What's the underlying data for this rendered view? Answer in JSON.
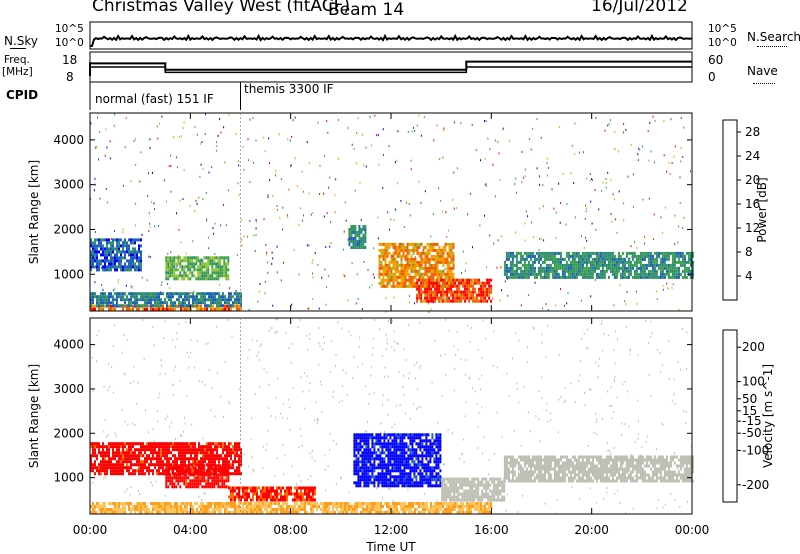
{
  "header": {
    "station": "Christmas Valley West (fitACF)",
    "beam": "Beam 14",
    "date": "16/Jul/2012"
  },
  "summary_panel": {
    "left_label_top": "N.Sky",
    "left_ticks_top": [
      "10^5",
      "10^0"
    ],
    "right_ticks_top": [
      "10^5",
      "10^0"
    ],
    "right_label_top": "N.Search",
    "left_label_freq": "Freq.",
    "left_label_freq_unit": "[MHz]",
    "left_ticks_freq": [
      "18",
      "8"
    ],
    "right_ticks_freq": [
      "60",
      "0"
    ],
    "right_label_freq": "Nave",
    "cpid_label": "CPID",
    "cpid_segments": [
      "normal (fast) 151 IF",
      "themis 3300 IF"
    ]
  },
  "colors": {
    "power": [
      "#0000ff",
      "#1f5fbf",
      "#2c8c74",
      "#3aa04a",
      "#8fc22d",
      "#f0a000",
      "#f06000",
      "#ff0000"
    ],
    "velocity": [
      "#ff0000",
      "#ff6a00",
      "#ff9f20",
      "#ffc45c",
      "#bdbdb3",
      "#6fcf3a",
      "#3f9f5f",
      "#1e60c0",
      "#0000ff"
    ],
    "ground_scatter": "#bdbdb3"
  },
  "chart_data": [
    {
      "type": "heatmap",
      "title": "",
      "xlabel": "",
      "ylabel": "Slant Range [km]",
      "xlim": [
        "00:00",
        "24:00"
      ],
      "ylim": [
        180,
        4600
      ],
      "x_ticks": [
        "00:00",
        "04:00",
        "08:00",
        "12:00",
        "16:00",
        "20:00",
        "00:00"
      ],
      "y_ticks": [
        1000,
        2000,
        3000,
        4000
      ],
      "colorbar": {
        "label": "Power [dB]",
        "ticks": [
          4,
          8,
          12,
          16,
          20,
          24,
          28
        ],
        "range": [
          0,
          30
        ]
      },
      "regions": [
        {
          "t": [
            0.0,
            6.0
          ],
          "range_km": [
            200,
            320
          ],
          "value_db": 24
        },
        {
          "t": [
            0.0,
            6.0
          ],
          "range_km": [
            320,
            600
          ],
          "value_db": 8
        },
        {
          "t": [
            3.0,
            5.5
          ],
          "range_km": [
            900,
            1400
          ],
          "value_db": 14
        },
        {
          "t": [
            0.0,
            2.0
          ],
          "range_km": [
            1100,
            1800
          ],
          "value_db": 6
        },
        {
          "t": [
            10.3,
            11.0
          ],
          "range_km": [
            1600,
            2100
          ],
          "value_db": 10
        },
        {
          "t": [
            11.5,
            14.5
          ],
          "range_km": [
            700,
            1700
          ],
          "value_db": 22
        },
        {
          "t": [
            13.0,
            16.0
          ],
          "range_km": [
            400,
            900
          ],
          "value_db": 26
        },
        {
          "t": [
            16.5,
            24.0
          ],
          "range_km": [
            900,
            1500
          ],
          "value_db": 10
        }
      ]
    },
    {
      "type": "heatmap",
      "title": "",
      "xlabel": "Time UT",
      "ylabel": "Slant Range [km]",
      "xlim": [
        "00:00",
        "24:00"
      ],
      "ylim": [
        180,
        4600
      ],
      "x_ticks": [
        "00:00",
        "04:00",
        "08:00",
        "12:00",
        "16:00",
        "20:00",
        "00:00"
      ],
      "y_ticks": [
        1000,
        2000,
        3000,
        4000
      ],
      "colorbar": {
        "label": "Velocity [m s^-1]",
        "ticks": [
          -200,
          -100,
          -50,
          -15,
          15,
          50,
          100,
          200
        ],
        "range": [
          -250,
          250
        ]
      },
      "regions": [
        {
          "t": [
            0.0,
            6.0
          ],
          "range_km": [
            1100,
            1800
          ],
          "value_ms": -220
        },
        {
          "t": [
            3.0,
            5.5
          ],
          "range_km": [
            800,
            1300
          ],
          "value_ms": -220
        },
        {
          "t": [
            5.5,
            9.0
          ],
          "range_km": [
            500,
            800
          ],
          "value_ms": -200
        },
        {
          "t": [
            0.0,
            16.0
          ],
          "range_km": [
            200,
            450
          ],
          "value_ms": -80
        },
        {
          "t": [
            10.5,
            14.0
          ],
          "range_km": [
            800,
            2000
          ],
          "value_ms": 220
        },
        {
          "t": [
            14.0,
            16.5
          ],
          "range_km": [
            500,
            1000
          ],
          "value_ms": 0
        },
        {
          "t": [
            16.5,
            24.0
          ],
          "range_km": [
            900,
            1500
          ],
          "value_ms": 0
        }
      ]
    }
  ]
}
